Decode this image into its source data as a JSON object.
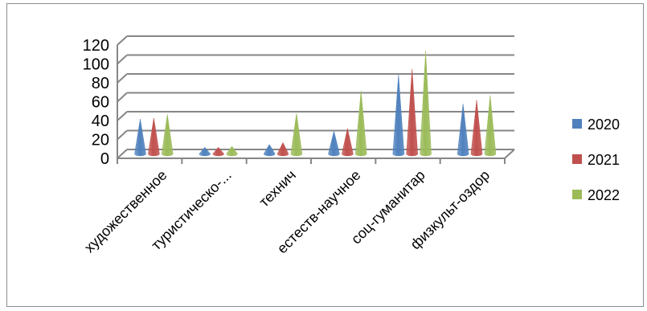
{
  "chart_data": {
    "type": "bar",
    "style": "3d-cone",
    "categories": [
      "художественное",
      "туристическо-...",
      "технич",
      "естеств-научное",
      "соц-гуманитар",
      "физкульт-оздор"
    ],
    "series": [
      {
        "name": "2020",
        "color": "#4f81bd",
        "values": [
          37,
          7,
          10,
          24,
          84,
          53
        ]
      },
      {
        "name": "2021",
        "color": "#c0504d",
        "values": [
          38,
          7,
          12,
          27,
          90,
          57
        ]
      },
      {
        "name": "2022",
        "color": "#9bbb59",
        "values": [
          42,
          8,
          43,
          67,
          109,
          62
        ]
      }
    ],
    "y_ticks": [
      "0",
      "20",
      "40",
      "60",
      "80",
      "100",
      "120"
    ],
    "ylim": [
      0,
      120
    ],
    "grid": true,
    "legend_position": "right",
    "title": "",
    "xlabel": "",
    "ylabel": ""
  }
}
